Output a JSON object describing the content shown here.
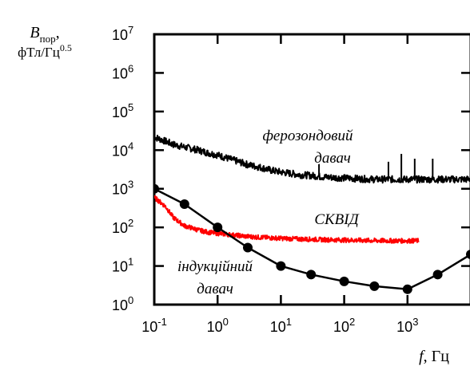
{
  "chart_data": {
    "type": "line",
    "x_scale": "log",
    "y_scale": "log",
    "xlim": [
      0.1,
      10000
    ],
    "ylim": [
      1,
      10000000
    ],
    "x_ticks": [
      "10",
      "10",
      "10",
      "10",
      "10",
      "10"
    ],
    "x_tick_exponents": [
      "-1",
      "0",
      "1",
      "2",
      "3",
      ""
    ],
    "y_ticks": [
      "10",
      "10",
      "10",
      "10",
      "10",
      "10",
      "10",
      "10"
    ],
    "y_tick_exponents": [
      "0",
      "1",
      "2",
      "3",
      "4",
      "5",
      "6",
      "7"
    ],
    "ylabel": {
      "symbol": "B",
      "subscript": "пор",
      "comma": ",",
      "units": "фТл/Гц",
      "units_exponent": "0.5"
    },
    "xlabel": {
      "symbol": "f",
      "units": ", Гц"
    },
    "series": [
      {
        "annotation_line1": "ферозондовий",
        "annotation_line2": "давач",
        "color": "#000000",
        "noisy": true,
        "x": [
          0.1,
          0.15,
          0.2,
          0.3,
          0.5,
          0.7,
          1,
          1.5,
          2,
          3,
          5,
          7,
          10,
          20,
          30,
          50,
          70,
          100,
          200,
          300,
          500,
          700,
          1000,
          2000,
          5000,
          10000
        ],
        "y": [
          22000,
          17000,
          14000,
          12000,
          10000,
          8500,
          7500,
          6000,
          5200,
          4200,
          3500,
          3000,
          2700,
          2300,
          2200,
          2000,
          1950,
          1900,
          1800,
          1750,
          1750,
          1750,
          1750,
          1750,
          1750,
          1750
        ],
        "spikes": [
          {
            "x": 40,
            "y": 4500
          },
          {
            "x": 500,
            "y": 5000
          },
          {
            "x": 800,
            "y": 8000
          },
          {
            "x": 1300,
            "y": 6000
          },
          {
            "x": 2500,
            "y": 6000
          }
        ]
      },
      {
        "annotation": "СКВІД",
        "color": "#ff0000",
        "noisy": true,
        "x": [
          0.1,
          0.15,
          0.2,
          0.3,
          0.5,
          0.7,
          1,
          2,
          3,
          5,
          10,
          20,
          50,
          100,
          200,
          500,
          1000,
          1500
        ],
        "y": [
          600,
          350,
          180,
          110,
          85,
          75,
          70,
          62,
          58,
          55,
          52,
          50,
          48,
          47,
          46,
          45,
          45,
          45
        ]
      },
      {
        "annotation_line1": "індукційний",
        "annotation_line2": "давач",
        "color": "#000000",
        "markers": true,
        "x": [
          0.1,
          0.3,
          1,
          3,
          10,
          30,
          100,
          300,
          1000,
          3000,
          10000
        ],
        "y": [
          1000,
          400,
          100,
          30,
          10,
          6,
          4,
          3,
          2.5,
          6,
          20
        ]
      }
    ]
  }
}
